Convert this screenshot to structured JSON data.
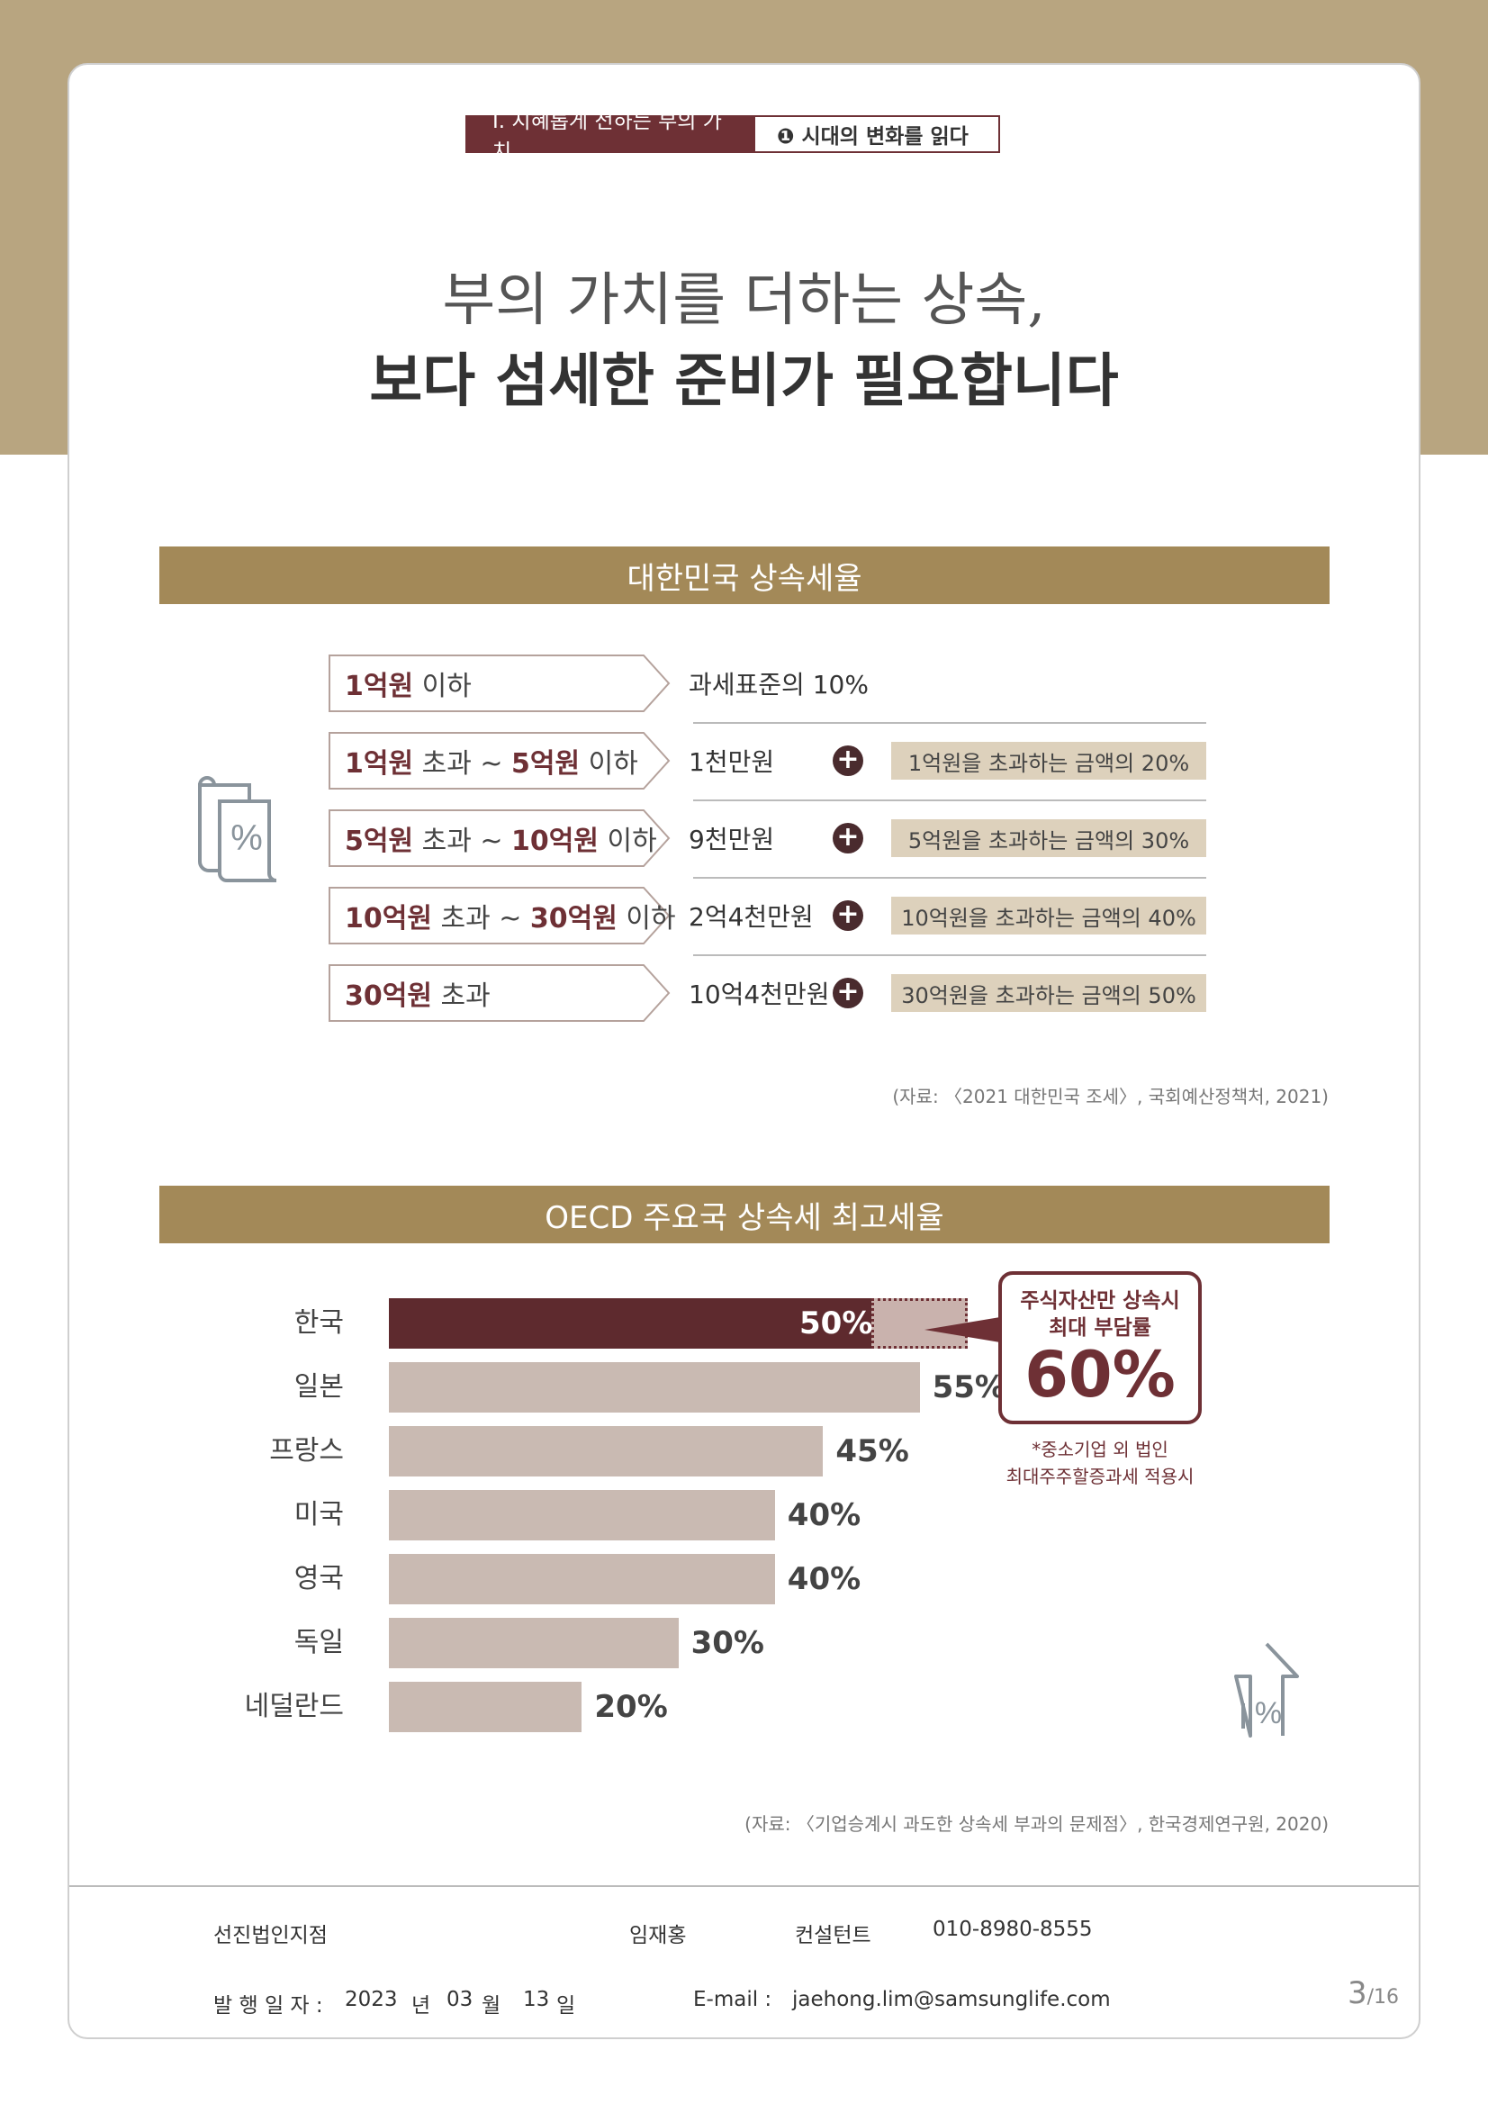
{
  "header": {
    "section": "Ⅰ. 지혜롭게 전하는 부의 가치",
    "chapter": "❶ 시대의 변화를 읽다"
  },
  "title": {
    "line1": "부의 가치를 더하는 상속,",
    "line2": "보다 섬세한 준비가 필요합니다"
  },
  "korea_tax": {
    "heading": "대한민국 상속세율",
    "rows": [
      {
        "b1": "1억원",
        "t1": " 이하",
        "b2": "",
        "t2": "",
        "base": "과세표준의 10%",
        "plus": false,
        "add": ""
      },
      {
        "b1": "1억원",
        "t1": " 초과 ~ ",
        "b2": "5억원",
        "t2": " 이하",
        "base": "1천만원",
        "plus": true,
        "add": "1억원을 초과하는 금액의 20%"
      },
      {
        "b1": "5억원",
        "t1": " 초과 ~ ",
        "b2": "10억원",
        "t2": " 이하",
        "base": "9천만원",
        "plus": true,
        "add": "5억원을 초과하는 금액의 30%"
      },
      {
        "b1": "10억원",
        "t1": " 초과 ~ ",
        "b2": "30억원",
        "t2": " 이하",
        "base": "2억4천만원",
        "plus": true,
        "add": "10억원을 초과하는 금액의 40%"
      },
      {
        "b1": "30억원",
        "t1": " 초과",
        "b2": "",
        "t2": "",
        "base": "10억4천만원",
        "plus": true,
        "add": "30억원을 초과하는 금액의 50%"
      }
    ],
    "source": "(자료: 〈2021 대한민국 조세〉, 국회예산정책처, 2021)",
    "icon": "percent-document-icon"
  },
  "chart_data": {
    "type": "bar",
    "title": "OECD 주요국 상속세 최고세율",
    "categories": [
      "한국",
      "일본",
      "프랑스",
      "미국",
      "영국",
      "독일",
      "네덜란드"
    ],
    "values": [
      50,
      55,
      45,
      40,
      40,
      30,
      20
    ],
    "labels": [
      "50%",
      "55%",
      "45%",
      "40%",
      "40%",
      "30%",
      "20%"
    ],
    "extension": {
      "category": "한국",
      "value": 60
    },
    "colors": {
      "highlight": "#5e2a2e",
      "default": "#c9bab2"
    },
    "orientation": "horizontal"
  },
  "callout": {
    "line1": "주식자산만 상속시",
    "line2": "최대 부담률",
    "value": "60%",
    "note1": "*중소기업 외 법인",
    "note2": "최대주주할증과세 적용시"
  },
  "oecd_source": "(자료: 〈기업승계시 과도한 상속세 부과의 문제점〉, 한국경제연구원, 2020)",
  "footer": {
    "branch": "선진법인지점",
    "name": "임재홍",
    "role": "컨설턴트",
    "phone": "010-8980-8555",
    "date_label": "발 행 일 자 :",
    "year": "2023",
    "year_unit": "년",
    "month": "03",
    "month_unit": "월",
    "day": "13",
    "day_unit": "일",
    "email_label": "E-mail :",
    "email": "jaehong.lim@samsunglife.com",
    "page": "3",
    "total": "/16"
  }
}
